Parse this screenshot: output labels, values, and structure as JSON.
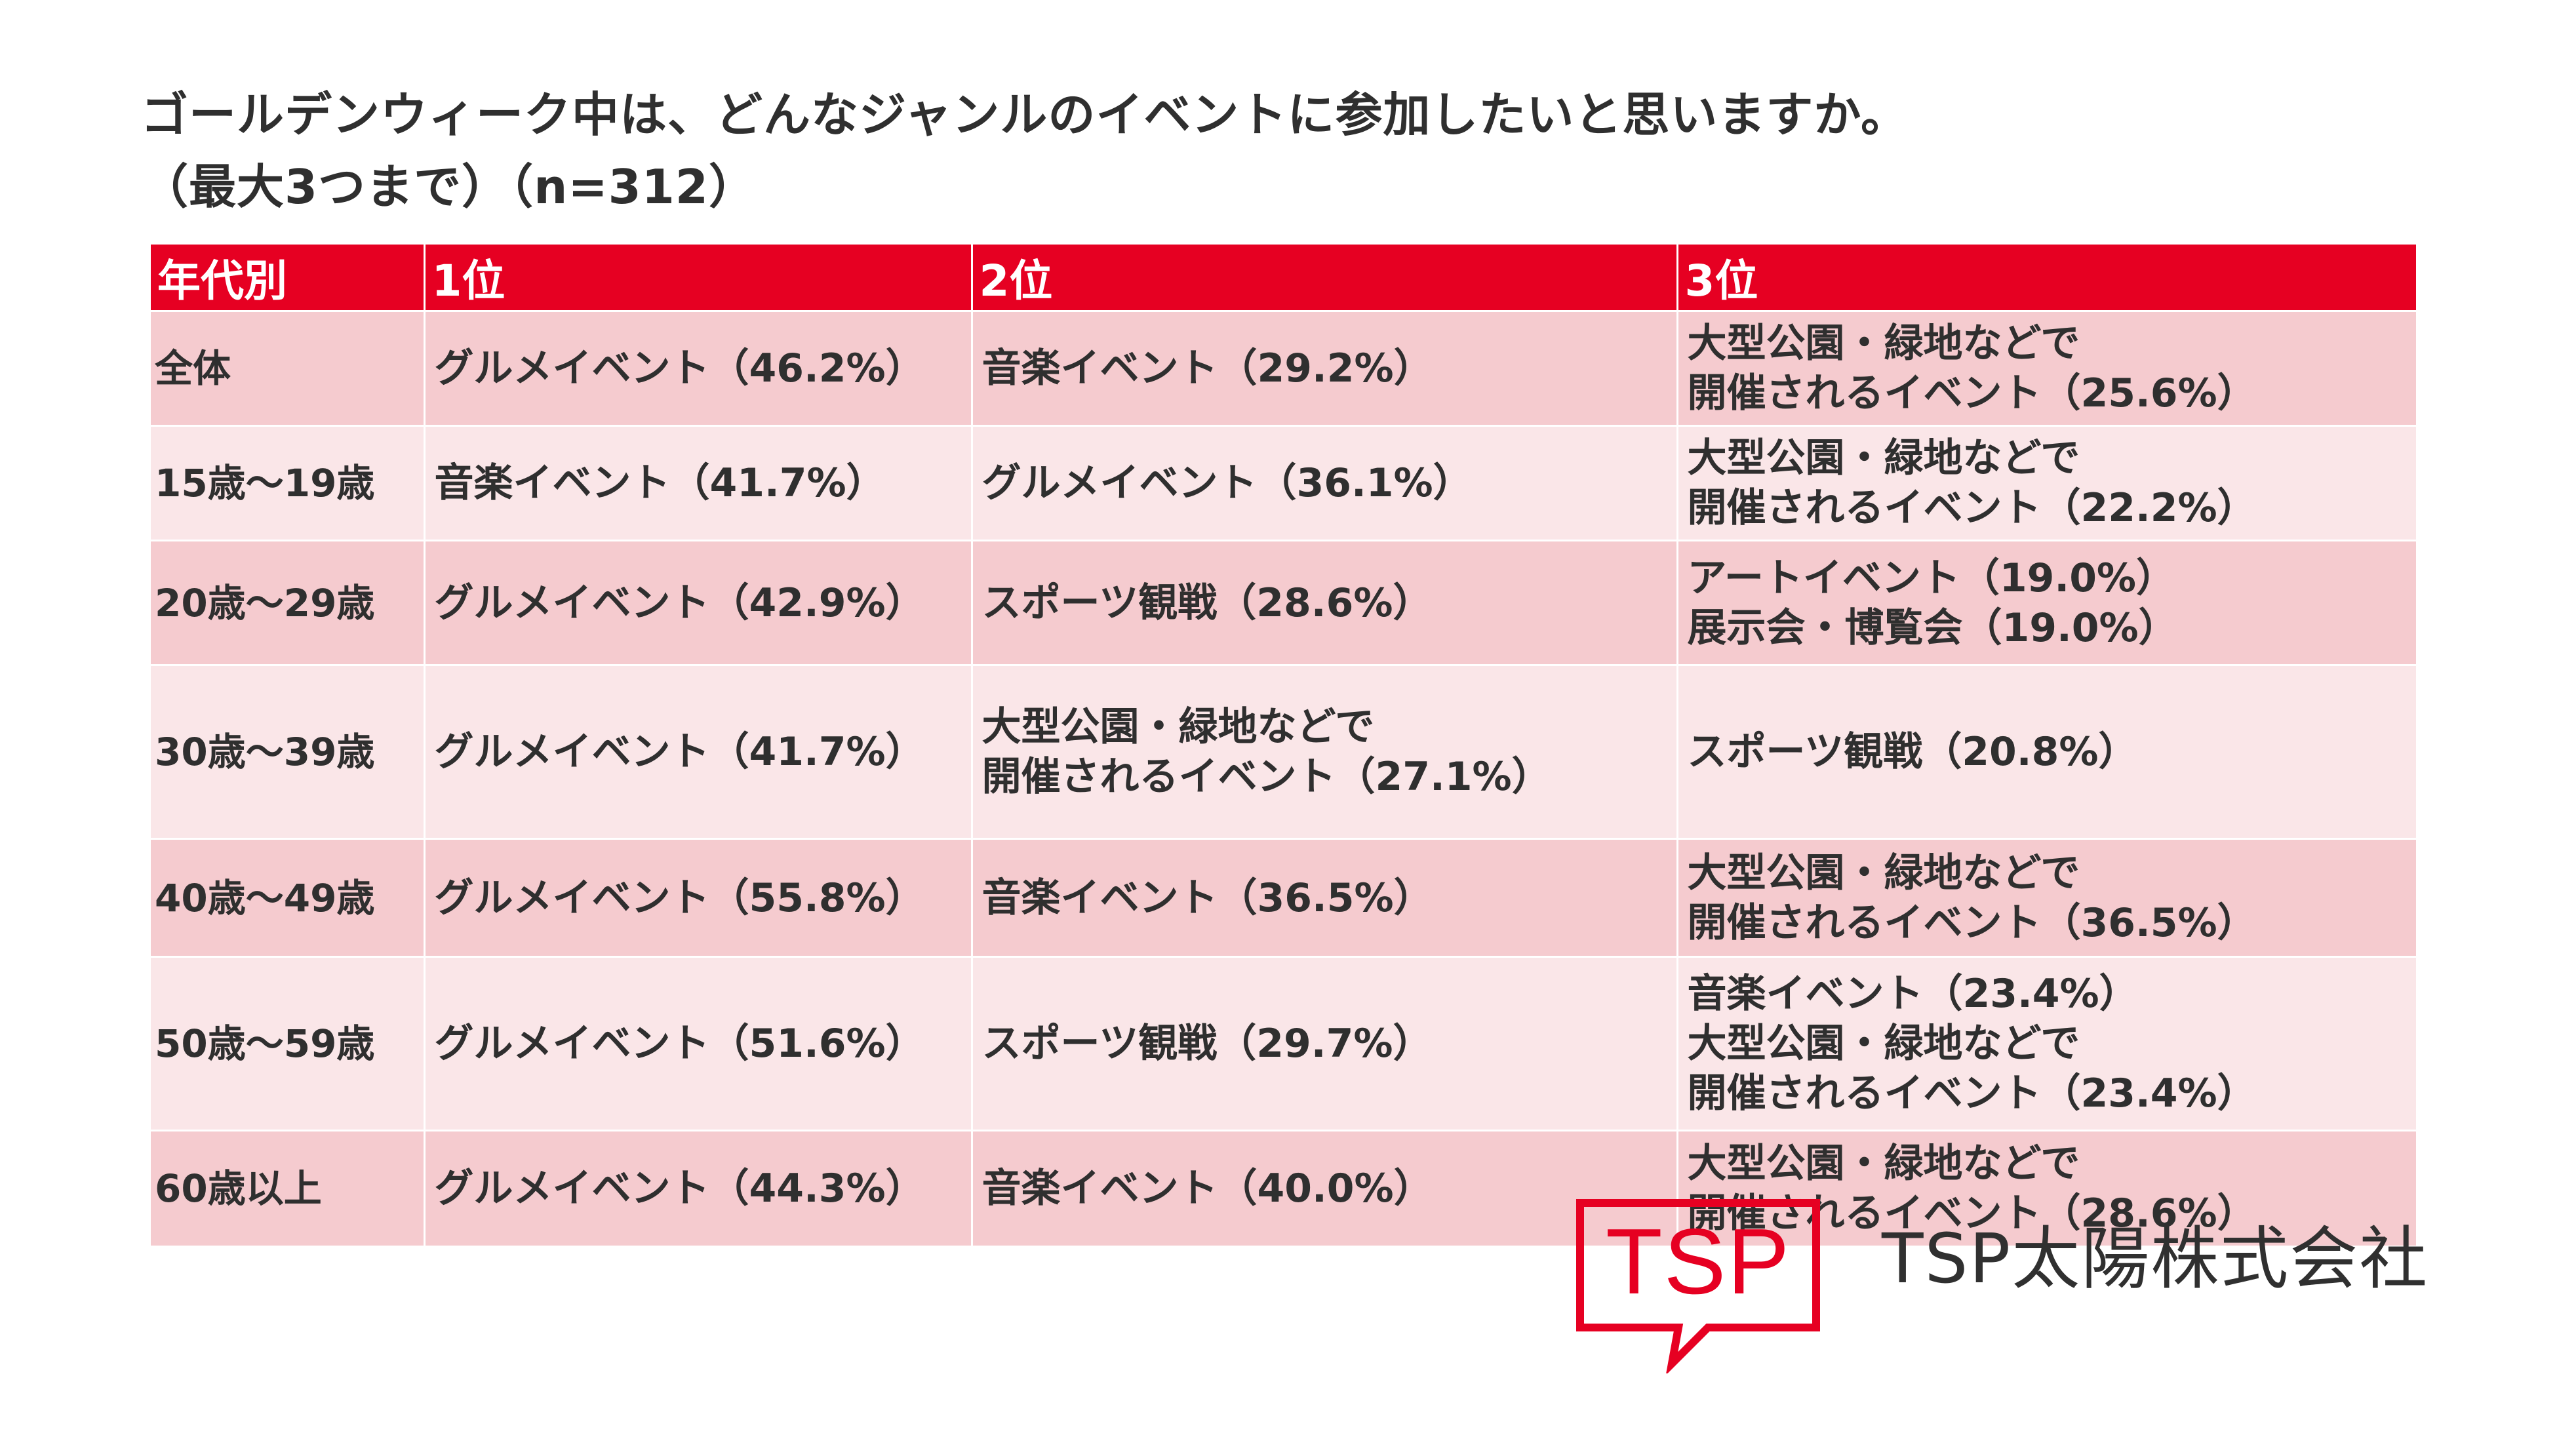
{
  "title": {
    "line1": "ゴールデンウィーク中は、どんなジャンルのイベントに参加したいと思いますか。",
    "line2": "（最大3つまで）（n=312）"
  },
  "table": {
    "headers": [
      "年代別",
      "1位",
      "2位",
      "3位"
    ],
    "rows": [
      {
        "label": "全体",
        "first": [
          "グルメイベント（46.2%）"
        ],
        "second": [
          "音楽イベント（29.2%）"
        ],
        "third": [
          "大型公園・緑地などで",
          "開催されるイベント（25.6%）"
        ]
      },
      {
        "label": "15歳〜19歳",
        "first": [
          "音楽イベント（41.7%）"
        ],
        "second": [
          "グルメイベント（36.1%）"
        ],
        "third": [
          "大型公園・緑地などで",
          "開催されるイベント（22.2%）"
        ]
      },
      {
        "label": "20歳〜29歳",
        "first": [
          "グルメイベント（42.9%）"
        ],
        "second": [
          "スポーツ観戦（28.6%）"
        ],
        "third": [
          "アートイベント（19.0%）",
          "展示会・博覧会（19.0%）"
        ]
      },
      {
        "label": "30歳〜39歳",
        "first": [
          "グルメイベント（41.7%）"
        ],
        "second": [
          "大型公園・緑地などで",
          "開催されるイベント（27.1%）"
        ],
        "third": [
          "スポーツ観戦（20.8%）"
        ]
      },
      {
        "label": "40歳〜49歳",
        "first": [
          "グルメイベント（55.8%）"
        ],
        "second": [
          "音楽イベント（36.5%）"
        ],
        "third": [
          "大型公園・緑地などで",
          "開催されるイベント（36.5%）"
        ]
      },
      {
        "label": "50歳〜59歳",
        "first": [
          "グルメイベント（51.6%）"
        ],
        "second": [
          "スポーツ観戦（29.7%）"
        ],
        "third": [
          "音楽イベント（23.4%）",
          "大型公園・緑地などで",
          "開催されるイベント（23.4%）"
        ]
      },
      {
        "label": "60歳以上",
        "first": [
          "グルメイベント（44.3%）"
        ],
        "second": [
          "音楽イベント（40.0%）"
        ],
        "third": [
          "大型公園・緑地などで",
          "開催されるイベント（28.6%）"
        ]
      }
    ]
  },
  "logo": {
    "mark_text": "TSP",
    "company_name": "TSP太陽株式会社",
    "brand_color": "#e60022"
  },
  "colors": {
    "header_bg": "#e60022",
    "row_dark": "#f5cbcf",
    "row_light": "#fae6e8"
  }
}
